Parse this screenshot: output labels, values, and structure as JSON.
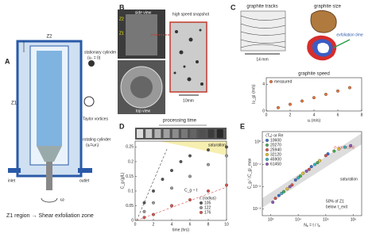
{
  "panels": {
    "a": {
      "label": "A",
      "z2": "Z2",
      "z1": "Z1",
      "stationary": "stationary cylinder",
      "stationary_eq": "(uₛ = 0)",
      "vortices": "Taylor vortices",
      "rotating": "rotating cylinder",
      "rotating_eq": "(uᵢ=ωrᵢ)",
      "inlet": "inlet",
      "outlet": "outlet",
      "omega": "ω",
      "caption": "Z1 region → Shear exfoliation zone"
    },
    "b": {
      "label": "B",
      "side": "side view",
      "top": "top view",
      "snapshot": "high speed snapshot",
      "scale": "10mm",
      "z1": "Z1",
      "z2": "Z2"
    },
    "c": {
      "label": "C",
      "tracks": "graphite tracks",
      "size": "graphite size",
      "scale": "14 mm",
      "exfoliation": "exfoliation time",
      "chart": {
        "type": "scatter",
        "title": "graphite speed",
        "xlabel": "uᵢ (m/s)",
        "ylabel": "⟨u_g⟩ (m/s)",
        "legend": "upper left",
        "series": [
          {
            "name": "measured",
            "color": "#e8743b",
            "x": [
              1,
              2,
              3,
              4,
              5,
              6,
              7
            ],
            "y": [
              0.5,
              1,
              1.5,
              2,
              2.5,
              3,
              3.5
            ]
          }
        ],
        "xlim": [
          0,
          8
        ],
        "ylim": [
          0,
          5
        ],
        "xticks": [
          0,
          2,
          4,
          6,
          8
        ],
        "yticks": [
          0,
          4
        ]
      }
    },
    "d": {
      "label": "D",
      "strip": "processing time",
      "saturation": "saturation",
      "fit": "C_g ~ t",
      "chart": {
        "type": "scatter",
        "xlabel": "time (hrs)",
        "ylabel": "C_g (g/L)",
        "legend": "lower right",
        "legend_title": "rᵢ (radius)",
        "series": [
          {
            "name": "105",
            "color": "#555555",
            "x": [
              1,
              2,
              3,
              4,
              5,
              6,
              8,
              10
            ],
            "y": [
              0.06,
              0.1,
              0.14,
              0.17,
              0.2,
              0.22,
              0.24,
              0.25
            ]
          },
          {
            "name": "122",
            "color": "#999999",
            "x": [
              1,
              2,
              4,
              6,
              8,
              10
            ],
            "y": [
              0.03,
              0.06,
              0.11,
              0.15,
              0.19,
              0.22
            ]
          },
          {
            "name": "176",
            "color": "#d9534f",
            "x": [
              1,
              2,
              4,
              6,
              8,
              10
            ],
            "y": [
              0.01,
              0.02,
              0.05,
              0.07,
              0.1,
              0.12
            ]
          }
        ],
        "xlim": [
          0,
          10
        ],
        "ylim": [
          0,
          0.27
        ],
        "xticks": [
          0,
          2,
          4,
          6,
          8,
          10
        ],
        "yticks": [
          0,
          0.05,
          0.1,
          0.15,
          0.2,
          0.25
        ]
      }
    },
    "e": {
      "label": "E",
      "corrected": "σ-corrected",
      "saturation": "saturation",
      "note1": "50% of Z1",
      "note2": "below τ_exit",
      "chart": {
        "type": "scatter",
        "xlog": true,
        "ylog": true,
        "xlabel": "Nₑ = t / τₑ",
        "ylabel": "C_g / ⟨C_g⟩_max",
        "legend": "upper left",
        "legend_title": "⟨Tₑ⟩ or Re",
        "series": [
          {
            "name": "10600",
            "color": "#3b6fd1",
            "x": [
              2000,
              8000,
              30000,
              120000
            ],
            "y": [
              0.004,
              0.02,
              0.08,
              0.3
            ]
          },
          {
            "name": "20270",
            "color": "#47b04b",
            "x": [
              3000,
              12000,
              50000,
              200000
            ],
            "y": [
              0.006,
              0.03,
              0.12,
              0.4
            ]
          },
          {
            "name": "25940",
            "color": "#d9534f",
            "x": [
              1500,
              6000,
              25000,
              100000
            ],
            "y": [
              0.003,
              0.012,
              0.06,
              0.25
            ]
          },
          {
            "name": "32120",
            "color": "#e6c229",
            "x": [
              4000,
              15000,
              60000,
              300000
            ],
            "y": [
              0.008,
              0.04,
              0.15,
              0.5
            ]
          },
          {
            "name": "45900",
            "color": "#32b8c6",
            "x": [
              2500,
              10000,
              40000,
              500000
            ],
            "y": [
              0.005,
              0.025,
              0.1,
              0.6
            ]
          },
          {
            "name": "61450",
            "color": "#8e5bb5",
            "x": [
              1200,
              5000,
              20000,
              800000
            ],
            "y": [
              0.002,
              0.01,
              0.05,
              0.7
            ]
          }
        ],
        "xlim": [
          500,
          2000000
        ],
        "ylim": [
          0.0005,
          3
        ],
        "xticks": [
          {
            "value": 1000,
            "label": "10³"
          },
          {
            "value": 10000,
            "label": "10⁴"
          },
          {
            "value": 100000,
            "label": "10⁵"
          },
          {
            "value": 1000000,
            "label": "10⁶"
          }
        ],
        "yticks": [
          {
            "value": 0.001,
            "label": "10⁻³"
          },
          {
            "value": 0.01,
            "label": "10⁻²"
          },
          {
            "value": 0.1,
            "label": "10⁻¹"
          },
          {
            "value": 1,
            "label": "10⁰"
          }
        ]
      }
    }
  }
}
